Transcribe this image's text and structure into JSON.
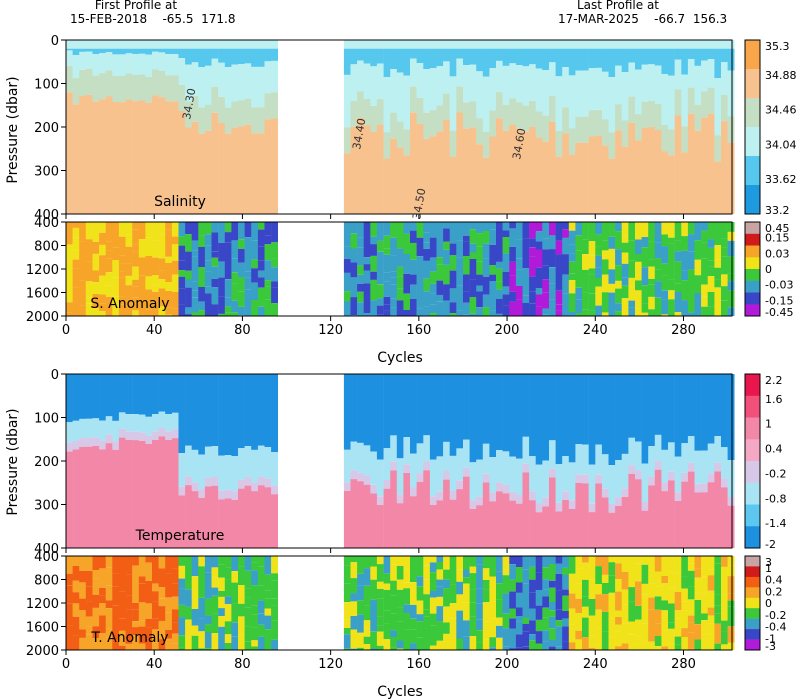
{
  "header": {
    "first_label": "First Profile at",
    "first_value": "15-FEB-2018    -65.5  171.8",
    "last_label": "Last Profile at",
    "last_value": "17-MAR-2025    -66.7  156.3"
  },
  "chart_data": [
    {
      "type": "heatmap",
      "title": "Salinity",
      "ylabel": "Pressure (dbar)",
      "xlim": [
        0,
        302
      ],
      "ylim": [
        0,
        400
      ],
      "y_ticks": [
        0,
        100,
        200,
        300,
        400
      ],
      "x_ticks": [
        0,
        40,
        80,
        120,
        160,
        200,
        240,
        280
      ],
      "colorbar": {
        "labels": [
          "35.3",
          "34.88",
          "34.46",
          "34.04",
          "33.62",
          "33.2"
        ],
        "colors": [
          "#f9a54a",
          "#f7c28e",
          "#c4dfc4",
          "#bdf0f0",
          "#56c8ee",
          "#1e9be0"
        ]
      },
      "contour_labels": [
        "34.30",
        "34.40",
        "34.50",
        "34.60"
      ],
      "data_gap": [
        95,
        126
      ]
    },
    {
      "type": "heatmap",
      "title": "S. Anomaly",
      "xlim": [
        0,
        302
      ],
      "ylim": [
        400,
        2000
      ],
      "y_ticks": [
        400,
        800,
        1200,
        1600,
        2000
      ],
      "x_ticks": [
        0,
        40,
        80,
        120,
        160,
        200,
        240,
        280
      ],
      "xlabel": "Cycles",
      "colorbar": {
        "labels": [
          "0.45",
          "0.15",
          "0.03",
          "0",
          "-0.03",
          "-0.15",
          "-0.45"
        ],
        "colors": [
          "#c9a4a4",
          "#d11a1a",
          "#f7a528",
          "#f1e319",
          "#3bc83b",
          "#3aa0c8",
          "#3a46c8",
          "#b01ad8"
        ]
      },
      "data_gap": [
        95,
        126
      ]
    },
    {
      "type": "heatmap",
      "title": "Temperature",
      "ylabel": "Pressure (dbar)",
      "xlim": [
        0,
        302
      ],
      "ylim": [
        0,
        400
      ],
      "y_ticks": [
        0,
        100,
        200,
        300,
        400
      ],
      "x_ticks": [
        0,
        40,
        80,
        120,
        160,
        200,
        240,
        280
      ],
      "colorbar": {
        "labels": [
          "2.2",
          "1.6",
          "1",
          "0.4",
          "-0.2",
          "-0.8",
          "-1.4",
          "-2"
        ],
        "colors": [
          "#e8164c",
          "#f0507a",
          "#f387a8",
          "#f4a8c4",
          "#d8c8e8",
          "#a8e4f4",
          "#5cc8f0",
          "#1e90e0"
        ]
      },
      "data_gap": [
        95,
        126
      ]
    },
    {
      "type": "heatmap",
      "title": "T. Anomaly",
      "xlim": [
        0,
        302
      ],
      "ylim": [
        400,
        2000
      ],
      "y_ticks": [
        400,
        800,
        1200,
        1600,
        2000
      ],
      "x_ticks": [
        0,
        40,
        80,
        120,
        160,
        200,
        240,
        280
      ],
      "xlabel": "Cycles",
      "colorbar": {
        "labels": [
          "3",
          "1",
          "0.4",
          "0.2",
          "0",
          "-0.2",
          "-0.4",
          "-1",
          "-3"
        ],
        "colors": [
          "#c9a4a4",
          "#d11a1a",
          "#f25e14",
          "#f7a528",
          "#f1e319",
          "#3bc83b",
          "#3aa0c8",
          "#3a46c8",
          "#b01ad8"
        ]
      },
      "data_gap": [
        95,
        126
      ]
    }
  ]
}
